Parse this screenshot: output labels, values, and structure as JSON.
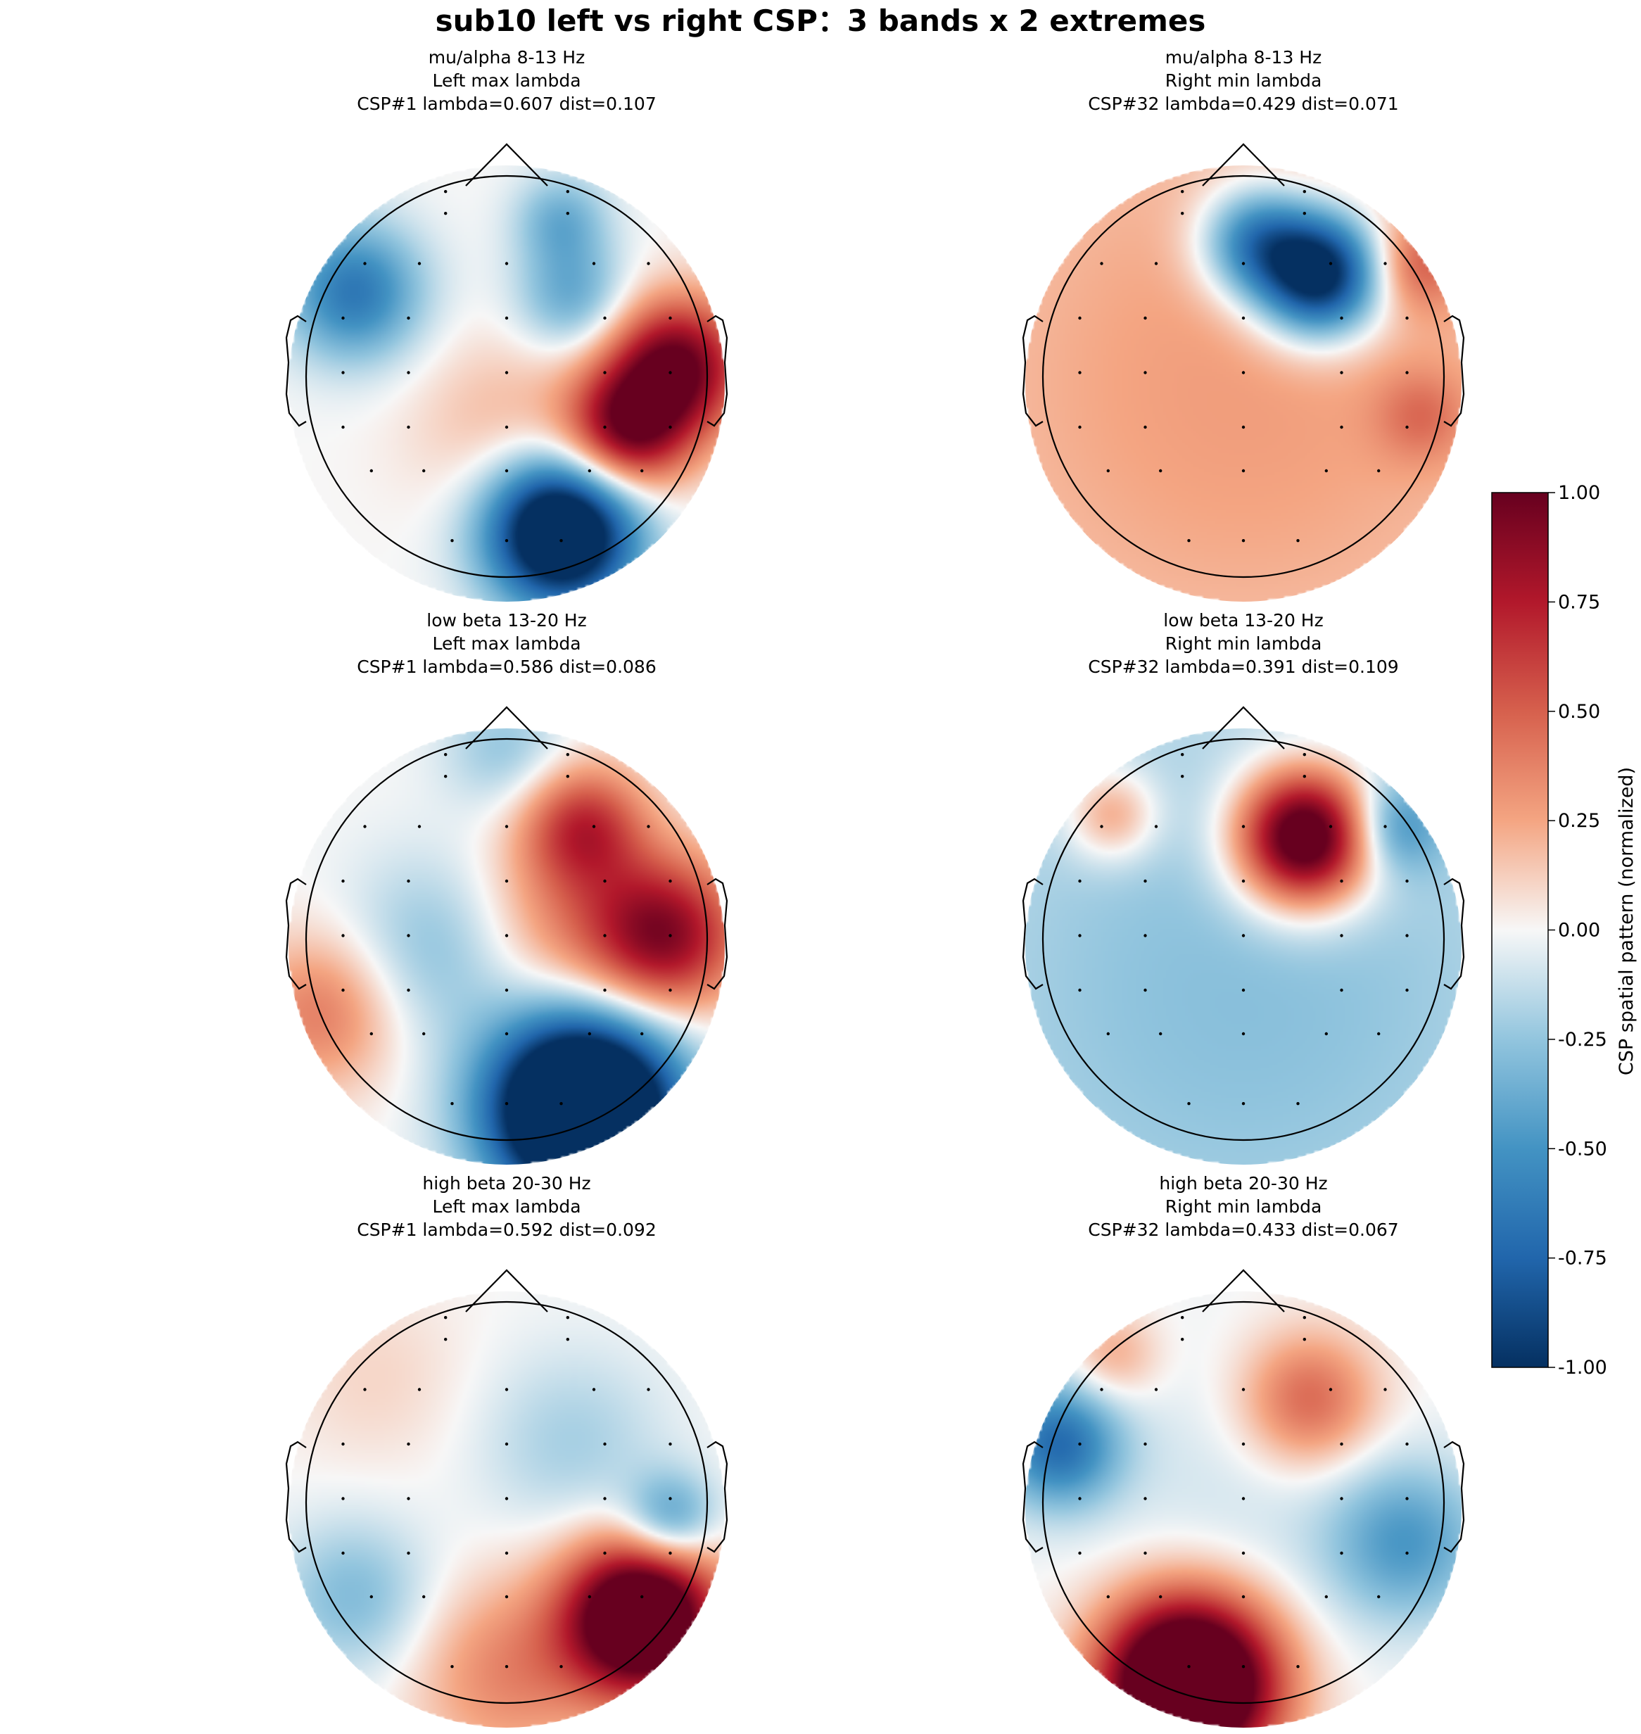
{
  "chart_data": {
    "type": "heatmap",
    "title": "sub10 left vs right CSP：3 bands x 2 extremes",
    "colorbar": {
      "label": "CSP spatial pattern (normalized)",
      "range": [
        -1.0,
        1.0
      ],
      "ticks": [
        "1.00",
        "0.75",
        "0.50",
        "0.25",
        "0.00",
        "-0.25",
        "-0.50",
        "-0.75",
        "-1.00"
      ],
      "colormap": "RdBu_r",
      "colors": {
        "max": "#67001f",
        "mid": "#f7f7f7",
        "min": "#053061"
      }
    },
    "panels": [
      {
        "title_lines": [
          "mu/alpha 8-13 Hz",
          "Left max lambda",
          "CSP#1  lambda=0.607  dist=0.107"
        ],
        "band": "mu/alpha 8-13 Hz",
        "extreme": "Left max lambda",
        "component": "CSP#1",
        "lambda": 0.607,
        "dist": 0.107,
        "blobs": [
          {
            "x": 0.78,
            "y": 0.08,
            "sigma": 0.22,
            "value": 1.0
          },
          {
            "x": 0.55,
            "y": -0.22,
            "sigma": 0.2,
            "value": 0.9
          },
          {
            "x": 0.25,
            "y": -0.68,
            "sigma": 0.24,
            "value": -1.5
          },
          {
            "x": -0.7,
            "y": 0.42,
            "sigma": 0.22,
            "value": -0.65
          },
          {
            "x": 0.3,
            "y": 0.4,
            "sigma": 0.18,
            "value": -0.4
          },
          {
            "x": 0.25,
            "y": 0.75,
            "sigma": 0.15,
            "value": -0.35
          },
          {
            "x": 0.0,
            "y": -0.2,
            "sigma": 0.3,
            "value": 0.2
          }
        ]
      },
      {
        "title_lines": [
          "mu/alpha 8-13 Hz",
          "Right min lambda",
          "CSP#32  lambda=0.429  dist=0.071"
        ],
        "band": "mu/alpha 8-13 Hz",
        "extreme": "Right min lambda",
        "component": "CSP#32",
        "lambda": 0.429,
        "dist": 0.071,
        "blobs": [
          {
            "x": 0.35,
            "y": 0.5,
            "sigma": 0.2,
            "value": -1.3
          },
          {
            "x": 0.05,
            "y": 0.65,
            "sigma": 0.18,
            "value": -0.7
          },
          {
            "x": 0.0,
            "y": 0.0,
            "sigma": 1.2,
            "value": 0.28
          },
          {
            "x": 0.8,
            "y": 0.55,
            "sigma": 0.15,
            "value": 0.35
          },
          {
            "x": 0.82,
            "y": -0.15,
            "sigma": 0.15,
            "value": 0.25
          }
        ]
      },
      {
        "title_lines": [
          "low beta 13-20 Hz",
          "Left max lambda",
          "CSP#1  lambda=0.586  dist=0.086"
        ],
        "band": "low beta 13-20 Hz",
        "extreme": "Left max lambda",
        "component": "CSP#1",
        "lambda": 0.586,
        "dist": 0.086,
        "blobs": [
          {
            "x": 0.35,
            "y": -0.75,
            "sigma": 0.3,
            "value": -2.0
          },
          {
            "x": 0.72,
            "y": 0.05,
            "sigma": 0.25,
            "value": 0.9
          },
          {
            "x": 0.35,
            "y": 0.55,
            "sigma": 0.2,
            "value": 0.65
          },
          {
            "x": 0.2,
            "y": 0.1,
            "sigma": 0.3,
            "value": 0.3
          },
          {
            "x": -0.3,
            "y": 0.0,
            "sigma": 0.3,
            "value": -0.3
          },
          {
            "x": -0.85,
            "y": -0.3,
            "sigma": 0.25,
            "value": 0.4
          },
          {
            "x": 0.0,
            "y": 0.9,
            "sigma": 0.2,
            "value": -0.25
          }
        ]
      },
      {
        "title_lines": [
          "low beta 13-20 Hz",
          "Right min lambda",
          "CSP#32  lambda=0.391  dist=0.109"
        ],
        "band": "low beta 13-20 Hz",
        "extreme": "Right min lambda",
        "component": "CSP#32",
        "lambda": 0.391,
        "dist": 0.109,
        "blobs": [
          {
            "x": 0.28,
            "y": 0.5,
            "sigma": 0.22,
            "value": 1.4
          },
          {
            "x": -0.6,
            "y": 0.6,
            "sigma": 0.15,
            "value": 0.4
          },
          {
            "x": 0.0,
            "y": -0.2,
            "sigma": 1.2,
            "value": -0.28
          },
          {
            "x": 0.7,
            "y": 0.55,
            "sigma": 0.15,
            "value": -0.4
          }
        ]
      },
      {
        "title_lines": [
          "high beta 20-30 Hz",
          "Left max lambda",
          "CSP#1  lambda=0.592  dist=0.092"
        ],
        "band": "high beta 20-30 Hz",
        "extreme": "Left max lambda",
        "component": "CSP#1",
        "lambda": 0.592,
        "dist": 0.092,
        "blobs": [
          {
            "x": 0.62,
            "y": -0.5,
            "sigma": 0.25,
            "value": 1.5
          },
          {
            "x": 0.0,
            "y": -0.75,
            "sigma": 0.3,
            "value": 0.35
          },
          {
            "x": 0.75,
            "y": -0.05,
            "sigma": 0.15,
            "value": -0.5
          },
          {
            "x": -0.7,
            "y": -0.4,
            "sigma": 0.25,
            "value": -0.3
          },
          {
            "x": 0.3,
            "y": 0.3,
            "sigma": 0.3,
            "value": -0.2
          },
          {
            "x": -0.6,
            "y": 0.6,
            "sigma": 0.3,
            "value": 0.1
          }
        ]
      },
      {
        "title_lines": [
          "high beta 20-30 Hz",
          "Right min lambda",
          "CSP#32  lambda=0.433  dist=0.067"
        ],
        "band": "high beta 20-30 Hz",
        "extreme": "Right min lambda",
        "component": "CSP#32",
        "lambda": 0.433,
        "dist": 0.067,
        "blobs": [
          {
            "x": -0.25,
            "y": -0.8,
            "sigma": 0.28,
            "value": 1.8
          },
          {
            "x": 0.3,
            "y": 0.5,
            "sigma": 0.22,
            "value": 0.5
          },
          {
            "x": -0.85,
            "y": 0.3,
            "sigma": 0.2,
            "value": -0.7
          },
          {
            "x": 0.75,
            "y": -0.15,
            "sigma": 0.25,
            "value": -0.45
          },
          {
            "x": 0.0,
            "y": 0.0,
            "sigma": 0.5,
            "value": -0.1
          },
          {
            "x": -0.6,
            "y": 0.7,
            "sigma": 0.15,
            "value": 0.25
          }
        ]
      }
    ],
    "electrodes": [
      {
        "x": -0.28,
        "y": 0.88
      },
      {
        "x": 0.28,
        "y": 0.88
      },
      {
        "x": -0.28,
        "y": 0.78
      },
      {
        "x": 0.28,
        "y": 0.78
      },
      {
        "x": -0.65,
        "y": 0.55
      },
      {
        "x": -0.4,
        "y": 0.55
      },
      {
        "x": 0.0,
        "y": 0.55
      },
      {
        "x": 0.4,
        "y": 0.55
      },
      {
        "x": 0.65,
        "y": 0.55
      },
      {
        "x": -0.75,
        "y": 0.3
      },
      {
        "x": -0.45,
        "y": 0.3
      },
      {
        "x": 0.0,
        "y": 0.3
      },
      {
        "x": 0.45,
        "y": 0.3
      },
      {
        "x": 0.75,
        "y": 0.3
      },
      {
        "x": -0.75,
        "y": 0.05
      },
      {
        "x": -0.45,
        "y": 0.05
      },
      {
        "x": 0.0,
        "y": 0.05
      },
      {
        "x": 0.45,
        "y": 0.05
      },
      {
        "x": 0.75,
        "y": 0.05
      },
      {
        "x": -0.75,
        "y": -0.2
      },
      {
        "x": -0.45,
        "y": -0.2
      },
      {
        "x": 0.0,
        "y": -0.2
      },
      {
        "x": 0.45,
        "y": -0.2
      },
      {
        "x": 0.75,
        "y": -0.2
      },
      {
        "x": -0.62,
        "y": -0.4
      },
      {
        "x": -0.38,
        "y": -0.4
      },
      {
        "x": 0.0,
        "y": -0.4
      },
      {
        "x": 0.38,
        "y": -0.4
      },
      {
        "x": 0.62,
        "y": -0.4
      },
      {
        "x": -0.25,
        "y": -0.72
      },
      {
        "x": 0.0,
        "y": -0.72
      },
      {
        "x": 0.25,
        "y": -0.72
      }
    ]
  }
}
